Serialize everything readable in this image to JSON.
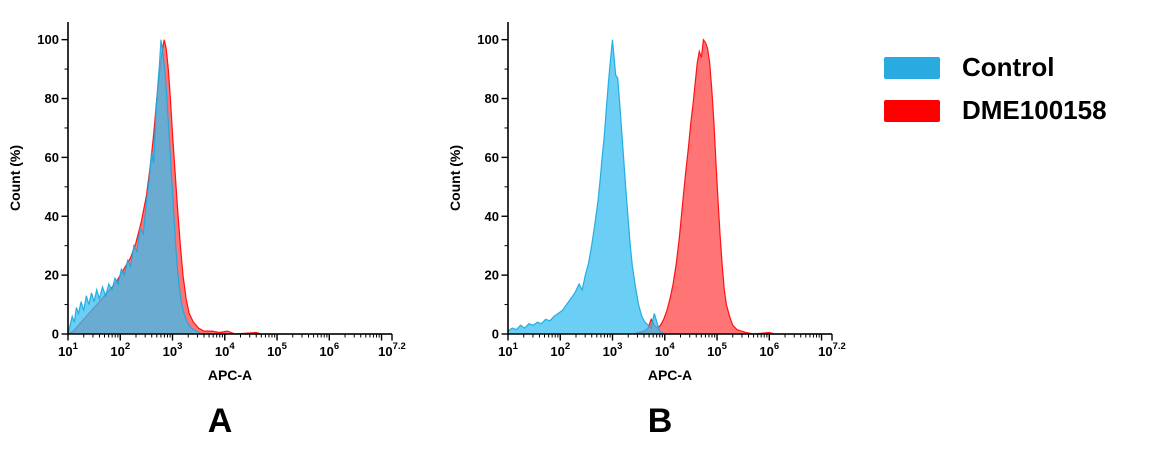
{
  "legend": {
    "items": [
      {
        "label": "Control",
        "color": "#29ABE2"
      },
      {
        "label": "DME100158",
        "color": "#FF0000"
      }
    ]
  },
  "chart_data": [
    {
      "type": "area",
      "panel_label": "A",
      "xlabel": "APC-A",
      "ylabel": "Count (%)",
      "x_scale": "log10",
      "xlim_log": [
        1,
        7.2
      ],
      "x_tick_base": "10",
      "x_ticks": [
        {
          "log": 1,
          "exp": "1"
        },
        {
          "log": 2,
          "exp": "2"
        },
        {
          "log": 3,
          "exp": "3"
        },
        {
          "log": 4,
          "exp": "4"
        },
        {
          "log": 5,
          "exp": "5"
        },
        {
          "log": 6,
          "exp": "6"
        },
        {
          "log": 7.2,
          "exp": "7.2"
        }
      ],
      "ylim": [
        0,
        100
      ],
      "y_ticks": [
        0,
        20,
        40,
        60,
        80,
        100
      ],
      "series": [
        {
          "name": "Control",
          "fill": "#38BDF2",
          "stroke": "#18A7DF",
          "fill_opacity": 0.75,
          "points": [
            [
              1.0,
              0
            ],
            [
              1.04,
              3
            ],
            [
              1.08,
              6
            ],
            [
              1.12,
              4
            ],
            [
              1.16,
              9
            ],
            [
              1.2,
              7
            ],
            [
              1.25,
              11
            ],
            [
              1.3,
              8
            ],
            [
              1.35,
              13
            ],
            [
              1.4,
              10
            ],
            [
              1.45,
              14
            ],
            [
              1.5,
              11
            ],
            [
              1.55,
              15
            ],
            [
              1.6,
              12
            ],
            [
              1.66,
              16
            ],
            [
              1.72,
              13
            ],
            [
              1.78,
              17
            ],
            [
              1.84,
              15
            ],
            [
              1.9,
              19
            ],
            [
              1.96,
              17
            ],
            [
              2.02,
              22
            ],
            [
              2.08,
              20
            ],
            [
              2.14,
              25
            ],
            [
              2.2,
              23
            ],
            [
              2.26,
              30
            ],
            [
              2.32,
              28
            ],
            [
              2.38,
              36
            ],
            [
              2.44,
              34
            ],
            [
              2.5,
              45
            ],
            [
              2.55,
              52
            ],
            [
              2.6,
              62
            ],
            [
              2.64,
              58
            ],
            [
              2.68,
              75
            ],
            [
              2.72,
              85
            ],
            [
              2.75,
              92
            ],
            [
              2.78,
              100
            ],
            [
              2.82,
              95
            ],
            [
              2.86,
              88
            ],
            [
              2.9,
              78
            ],
            [
              2.94,
              66
            ],
            [
              2.98,
              54
            ],
            [
              3.02,
              42
            ],
            [
              3.06,
              30
            ],
            [
              3.1,
              21
            ],
            [
              3.15,
              13
            ],
            [
              3.2,
              8
            ],
            [
              3.28,
              4
            ],
            [
              3.36,
              2
            ],
            [
              3.45,
              1
            ],
            [
              3.55,
              0
            ],
            [
              7.2,
              0
            ]
          ]
        },
        {
          "name": "DME100158",
          "fill": "#FF2020",
          "stroke": "#FF0000",
          "fill_opacity": 0.62,
          "points": [
            [
              1.0,
              0
            ],
            [
              1.1,
              1
            ],
            [
              1.2,
              3
            ],
            [
              1.3,
              5
            ],
            [
              1.4,
              7
            ],
            [
              1.5,
              9
            ],
            [
              1.6,
              11
            ],
            [
              1.7,
              13
            ],
            [
              1.8,
              15
            ],
            [
              1.9,
              17
            ],
            [
              2.0,
              20
            ],
            [
              2.1,
              23
            ],
            [
              2.2,
              26
            ],
            [
              2.3,
              31
            ],
            [
              2.4,
              38
            ],
            [
              2.5,
              47
            ],
            [
              2.58,
              58
            ],
            [
              2.64,
              68
            ],
            [
              2.7,
              80
            ],
            [
              2.76,
              90
            ],
            [
              2.8,
              96
            ],
            [
              2.84,
              100
            ],
            [
              2.88,
              97
            ],
            [
              2.92,
              90
            ],
            [
              2.96,
              80
            ],
            [
              3.0,
              68
            ],
            [
              3.05,
              55
            ],
            [
              3.1,
              42
            ],
            [
              3.15,
              30
            ],
            [
              3.2,
              20
            ],
            [
              3.26,
              12
            ],
            [
              3.32,
              7
            ],
            [
              3.4,
              4
            ],
            [
              3.5,
              2
            ],
            [
              3.6,
              1
            ],
            [
              3.75,
              1
            ],
            [
              3.9,
              0.5
            ],
            [
              4.05,
              1
            ],
            [
              4.2,
              0
            ],
            [
              4.6,
              0.5
            ],
            [
              4.7,
              0
            ],
            [
              7.2,
              0
            ]
          ]
        }
      ]
    },
    {
      "type": "area",
      "panel_label": "B",
      "xlabel": "APC-A",
      "ylabel": "Count (%)",
      "x_scale": "log10",
      "xlim_log": [
        1,
        7.2
      ],
      "x_tick_base": "10",
      "x_ticks": [
        {
          "log": 1,
          "exp": "1"
        },
        {
          "log": 2,
          "exp": "2"
        },
        {
          "log": 3,
          "exp": "3"
        },
        {
          "log": 4,
          "exp": "4"
        },
        {
          "log": 5,
          "exp": "5"
        },
        {
          "log": 6,
          "exp": "6"
        },
        {
          "log": 7.2,
          "exp": "7.2"
        }
      ],
      "ylim": [
        0,
        100
      ],
      "y_ticks": [
        0,
        20,
        40,
        60,
        80,
        100
      ],
      "series": [
        {
          "name": "Control",
          "fill": "#38BDF2",
          "stroke": "#18A7DF",
          "fill_opacity": 0.75,
          "points": [
            [
              1.0,
              1
            ],
            [
              1.08,
              2
            ],
            [
              1.16,
              1.5
            ],
            [
              1.24,
              3
            ],
            [
              1.32,
              2
            ],
            [
              1.4,
              3.5
            ],
            [
              1.48,
              3
            ],
            [
              1.56,
              4
            ],
            [
              1.64,
              3.5
            ],
            [
              1.72,
              5
            ],
            [
              1.8,
              4.5
            ],
            [
              1.88,
              6
            ],
            [
              1.96,
              7
            ],
            [
              2.04,
              8
            ],
            [
              2.12,
              10
            ],
            [
              2.2,
              12
            ],
            [
              2.28,
              14
            ],
            [
              2.36,
              17
            ],
            [
              2.42,
              15
            ],
            [
              2.48,
              20
            ],
            [
              2.54,
              24
            ],
            [
              2.6,
              30
            ],
            [
              2.66,
              37
            ],
            [
              2.72,
              45
            ],
            [
              2.76,
              52
            ],
            [
              2.8,
              60
            ],
            [
              2.84,
              67
            ],
            [
              2.88,
              76
            ],
            [
              2.92,
              85
            ],
            [
              2.96,
              93
            ],
            [
              3.0,
              100
            ],
            [
              3.03,
              94
            ],
            [
              3.06,
              88
            ],
            [
              3.1,
              87
            ],
            [
              3.14,
              78
            ],
            [
              3.18,
              68
            ],
            [
              3.22,
              58
            ],
            [
              3.26,
              48
            ],
            [
              3.3,
              39
            ],
            [
              3.34,
              30
            ],
            [
              3.38,
              23
            ],
            [
              3.44,
              16
            ],
            [
              3.5,
              10
            ],
            [
              3.56,
              6
            ],
            [
              3.62,
              4
            ],
            [
              3.68,
              3
            ],
            [
              3.74,
              2
            ],
            [
              3.8,
              7
            ],
            [
              3.85,
              4
            ],
            [
              3.9,
              1
            ],
            [
              4.0,
              0
            ],
            [
              7.2,
              0
            ]
          ]
        },
        {
          "name": "DME100158",
          "fill": "#FF2020",
          "stroke": "#FF0000",
          "fill_opacity": 0.62,
          "points": [
            [
              3.4,
              0
            ],
            [
              3.5,
              0.5
            ],
            [
              3.6,
              1
            ],
            [
              3.68,
              2
            ],
            [
              3.74,
              5
            ],
            [
              3.8,
              3
            ],
            [
              3.86,
              2
            ],
            [
              3.92,
              3
            ],
            [
              3.98,
              5
            ],
            [
              4.04,
              8
            ],
            [
              4.1,
              12
            ],
            [
              4.16,
              17
            ],
            [
              4.22,
              24
            ],
            [
              4.28,
              33
            ],
            [
              4.34,
              44
            ],
            [
              4.4,
              55
            ],
            [
              4.45,
              63
            ],
            [
              4.5,
              72
            ],
            [
              4.54,
              78
            ],
            [
              4.58,
              85
            ],
            [
              4.62,
              92
            ],
            [
              4.66,
              96
            ],
            [
              4.7,
              94
            ],
            [
              4.74,
              100
            ],
            [
              4.78,
              99
            ],
            [
              4.82,
              97
            ],
            [
              4.86,
              92
            ],
            [
              4.9,
              83
            ],
            [
              4.94,
              72
            ],
            [
              4.98,
              58
            ],
            [
              5.02,
              45
            ],
            [
              5.06,
              33
            ],
            [
              5.1,
              23
            ],
            [
              5.14,
              15
            ],
            [
              5.18,
              10
            ],
            [
              5.24,
              6
            ],
            [
              5.3,
              3
            ],
            [
              5.38,
              1.5
            ],
            [
              5.46,
              1
            ],
            [
              5.55,
              0.5
            ],
            [
              5.7,
              0
            ],
            [
              6.0,
              0.5
            ],
            [
              6.1,
              0
            ],
            [
              7.2,
              0
            ]
          ]
        }
      ]
    }
  ]
}
